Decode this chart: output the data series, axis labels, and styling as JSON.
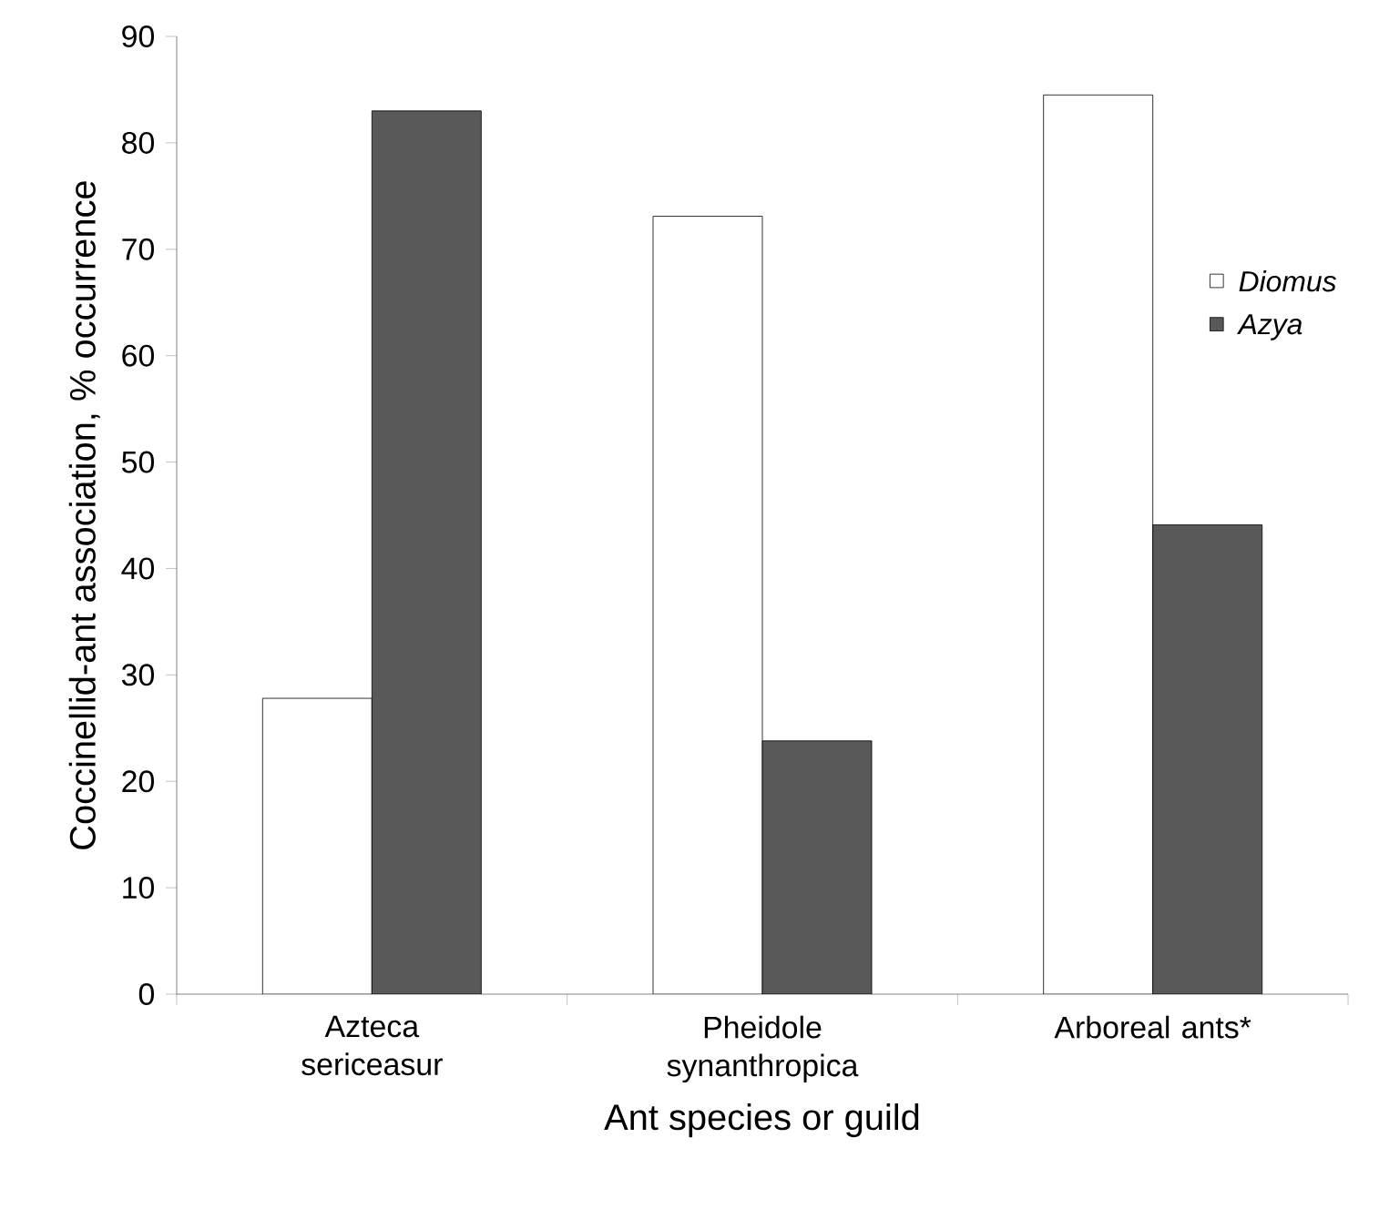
{
  "chart_data": {
    "type": "bar",
    "xlabel": "Ant species or guild",
    "ylabel": "Coccinellid-ant association, % occurrence",
    "categories": [
      "Azteca sericeasur",
      "Pheidole synanthropica",
      "Arboreal ants*"
    ],
    "series": [
      {
        "name": "Diomus",
        "color": "#ffffff",
        "values": [
          27.8,
          73.1,
          84.5
        ]
      },
      {
        "name": "Azya",
        "color": "#595959",
        "values": [
          83.0,
          23.8,
          44.1
        ]
      }
    ],
    "ylim": [
      0,
      90
    ],
    "yticks": [
      0,
      10,
      20,
      30,
      40,
      50,
      60,
      70,
      80,
      90
    ],
    "grid": false,
    "legend": "right"
  }
}
